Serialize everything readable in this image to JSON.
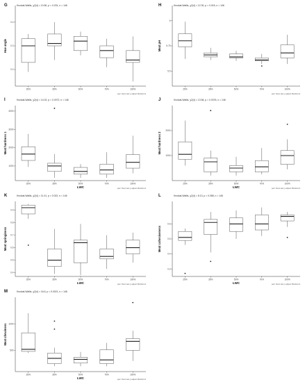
{
  "footnote": "pwc: Dunn test; p.adjust: Bonferroni",
  "chart_data": [
    {
      "type": "box",
      "panel": "G",
      "subtitle": "Kruskal-Wallis, χ2(4) = 10.80, p = 0.031, n = 146",
      "xlabel": "",
      "ylabel": "Hue angle",
      "categories": [
        "25%",
        "35%",
        "50%",
        "70%",
        "100%"
      ],
      "yticks": [
        0.2,
        0.3,
        0.4
      ],
      "ylim": [
        0.13,
        0.47
      ],
      "boxes": [
        {
          "min": 0.19,
          "q1": 0.23,
          "median": 0.3,
          "q3": 0.33,
          "max": 0.35,
          "outliers": []
        },
        {
          "min": 0.24,
          "q1": 0.3,
          "median": 0.31,
          "q3": 0.35,
          "max": 0.4,
          "outliers": []
        },
        {
          "min": 0.26,
          "q1": 0.28,
          "median": 0.32,
          "q3": 0.34,
          "max": 0.36,
          "outliers": []
        },
        {
          "min": 0.21,
          "q1": 0.25,
          "median": 0.28,
          "q3": 0.3,
          "max": 0.33,
          "outliers": []
        },
        {
          "min": 0.15,
          "q1": 0.23,
          "median": 0.24,
          "q3": 0.28,
          "max": 0.34,
          "outliers": []
        }
      ]
    },
    {
      "type": "box",
      "panel": "H",
      "subtitle": "Kruskal-Wallis, χ2(4) = 12.30, p = 0.015, n = 146",
      "xlabel": "",
      "ylabel": "Meat pH",
      "categories": [
        "25%",
        "35%",
        "50%",
        "70%",
        "100%"
      ],
      "yticks": [
        5.5,
        5.75,
        6.0
      ],
      "ylim": [
        5.35,
        6.15
      ],
      "boxes": [
        {
          "min": 5.62,
          "q1": 5.74,
          "median": 5.8,
          "q3": 5.87,
          "max": 5.99,
          "outliers": []
        },
        {
          "min": 5.61,
          "q1": 5.64,
          "median": 5.66,
          "q3": 5.68,
          "max": 5.73,
          "outliers": []
        },
        {
          "min": 5.6,
          "q1": 5.63,
          "median": 5.64,
          "q3": 5.67,
          "max": 5.7,
          "outliers": []
        },
        {
          "min": 5.57,
          "q1": 5.6,
          "median": 5.61,
          "q3": 5.63,
          "max": 5.67,
          "outliers": [
            5.55
          ]
        },
        {
          "min": 5.57,
          "q1": 5.63,
          "median": 5.68,
          "q3": 5.76,
          "max": 5.86,
          "outliers": []
        }
      ]
    },
    {
      "type": "box",
      "panel": "I",
      "subtitle": "Kruskal-Wallis, χ2(4) = 14.02, p = 0.0072, n = 146",
      "xlabel": "LWC",
      "ylabel": "Meat hardness 1",
      "categories": [
        "25%",
        "35%",
        "50%",
        "70%",
        "100%"
      ],
      "yticks": [
        1000,
        2000,
        3000,
        4000
      ],
      "ylim": [
        200,
        4300
      ],
      "boxes": [
        {
          "min": 950,
          "q1": 1300,
          "median": 1650,
          "q3": 2050,
          "max": 2750,
          "outliers": []
        },
        {
          "min": 350,
          "q1": 700,
          "median": 1000,
          "q3": 1150,
          "max": 1650,
          "outliers": [
            4150
          ]
        },
        {
          "min": 350,
          "q1": 550,
          "median": 700,
          "q3": 920,
          "max": 1100,
          "outliers": []
        },
        {
          "min": 350,
          "q1": 550,
          "median": 780,
          "q3": 1100,
          "max": 1750,
          "outliers": []
        },
        {
          "min": 600,
          "q1": 880,
          "median": 1200,
          "q3": 1620,
          "max": 2650,
          "outliers": []
        }
      ]
    },
    {
      "type": "box",
      "panel": "J",
      "subtitle": "Kruskal-Wallis, χ2(4) = 13.56, p = 0.0076, n = 146",
      "xlabel": "LWC",
      "ylabel": "Meat hardness 2",
      "categories": [
        "25%",
        "35%",
        "50%",
        "70%",
        "100%"
      ],
      "yticks": [
        1000,
        2000
      ],
      "ylim": [
        0,
        3000
      ],
      "boxes": [
        {
          "min": 600,
          "q1": 850,
          "median": 1050,
          "q3": 1550,
          "max": 2400,
          "outliers": []
        },
        {
          "min": 200,
          "q1": 350,
          "median": 750,
          "q3": 900,
          "max": 1200,
          "outliers": [
            2800
          ]
        },
        {
          "min": 200,
          "q1": 350,
          "median": 500,
          "q3": 600,
          "max": 950,
          "outliers": []
        },
        {
          "min": 250,
          "q1": 350,
          "median": 550,
          "q3": 800,
          "max": 1300,
          "outliers": []
        },
        {
          "min": 450,
          "q1": 650,
          "median": 1000,
          "q3": 1200,
          "max": 1650,
          "outliers": [
            2250
          ]
        }
      ]
    },
    {
      "type": "box",
      "panel": "K",
      "subtitle": "Kruskal-Wallis, χ2(4) = 11.41, p = 0.022, n = 146",
      "xlabel": "LWC",
      "ylabel": "Meat springiness",
      "categories": [
        "25%",
        "35%",
        "50%",
        "70%",
        "100%"
      ],
      "yticks": [
        0.4,
        0.5,
        0.6,
        0.7,
        0.8,
        0.9
      ],
      "ylim": [
        0.37,
        0.97
      ],
      "boxes": [
        {
          "min": 0.83,
          "q1": 0.87,
          "median": 0.92,
          "q3": 0.94,
          "max": 0.95,
          "outliers": [
            0.62
          ]
        },
        {
          "min": 0.39,
          "q1": 0.45,
          "median": 0.5,
          "q3": 0.59,
          "max": 0.75,
          "outliers": []
        },
        {
          "min": 0.38,
          "q1": 0.48,
          "median": 0.64,
          "q3": 0.66,
          "max": 0.79,
          "outliers": []
        },
        {
          "min": 0.43,
          "q1": 0.51,
          "median": 0.53,
          "q3": 0.59,
          "max": 0.7,
          "outliers": []
        },
        {
          "min": 0.48,
          "q1": 0.55,
          "median": 0.6,
          "q3": 0.66,
          "max": 0.72,
          "outliers": []
        }
      ]
    },
    {
      "type": "box",
      "panel": "L",
      "subtitle": "Kruskal-Wallis, χ2(4) = 8.13, p = 0.086, n = 146",
      "xlabel": "LWC",
      "ylabel": "Meat cohesiveness",
      "categories": [
        "25%",
        "35%",
        "50%",
        "70%",
        "100%"
      ],
      "yticks": [
        0.3,
        0.4,
        0.5,
        0.6
      ],
      "ylim": [
        0.25,
        0.75
      ],
      "boxes": [
        {
          "min": 0.46,
          "q1": 0.49,
          "median": 0.51,
          "q3": 0.55,
          "max": 0.57,
          "outliers": [
            0.27
          ]
        },
        {
          "min": 0.41,
          "q1": 0.53,
          "median": 0.61,
          "q3": 0.63,
          "max": 0.68,
          "outliers": [
            0.35
          ]
        },
        {
          "min": 0.5,
          "q1": 0.55,
          "median": 0.6,
          "q3": 0.64,
          "max": 0.69,
          "outliers": []
        },
        {
          "min": 0.52,
          "q1": 0.56,
          "median": 0.6,
          "q3": 0.66,
          "max": 0.71,
          "outliers": []
        },
        {
          "min": 0.58,
          "q1": 0.62,
          "median": 0.65,
          "q3": 0.66,
          "max": 0.68,
          "outliers": [
            0.51
          ]
        }
      ]
    },
    {
      "type": "box",
      "panel": "M",
      "subtitle": "Kruskal-Wallis, χ2(4) = 16.6, p = 0.0021, n = 146",
      "xlabel": "LWC",
      "ylabel": "Meat chewiness",
      "categories": [
        "25%",
        "35%",
        "50%",
        "70%",
        "100%"
      ],
      "yticks": [
        500,
        1000
      ],
      "ylim": [
        100,
        1500
      ],
      "boxes": [
        {
          "min": 450,
          "q1": 480,
          "median": 520,
          "q3": 830,
          "max": 1200,
          "outliers": []
        },
        {
          "min": 200,
          "q1": 250,
          "median": 350,
          "q3": 450,
          "max": 550,
          "outliers": [
            900,
            1050
          ]
        },
        {
          "min": 200,
          "q1": 260,
          "median": 330,
          "q3": 370,
          "max": 470,
          "outliers": []
        },
        {
          "min": 200,
          "q1": 250,
          "median": 320,
          "q3": 510,
          "max": 640,
          "outliers": []
        },
        {
          "min": 300,
          "q1": 500,
          "median": 670,
          "q3": 720,
          "max": 870,
          "outliers": [
            1400
          ]
        }
      ]
    }
  ]
}
